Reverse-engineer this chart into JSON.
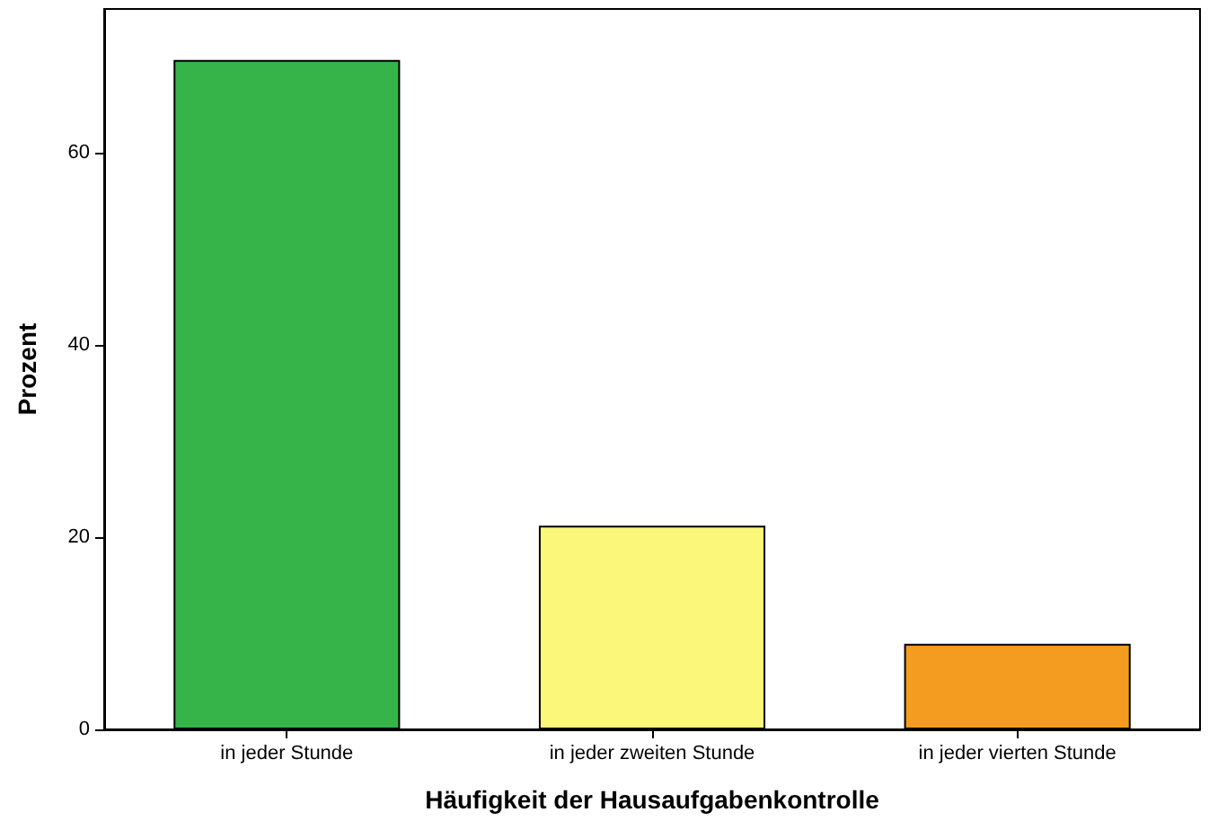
{
  "chart_data": {
    "type": "bar",
    "xlabel": "Häufigkeit der Hausaufgabenkontrolle",
    "ylabel": "Prozent",
    "categories": [
      "in jeder Stunde",
      "in jeder zweiten Stunde",
      "in jeder vierten Stunde"
    ],
    "values": [
      69.7,
      21.2,
      8.9
    ],
    "colors": [
      "#36b44a",
      "#faf77a",
      "#f39c1f"
    ],
    "ylim": [
      0,
      75
    ],
    "yticks": [
      0,
      20,
      40,
      60
    ],
    "grid": false
  }
}
